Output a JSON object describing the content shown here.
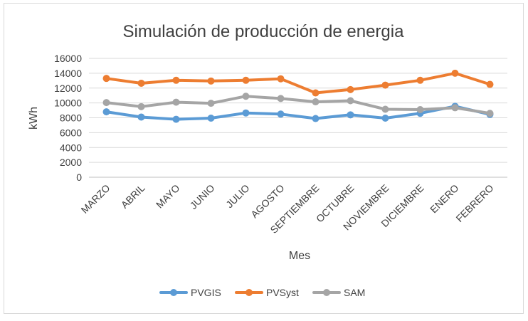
{
  "chart_data": {
    "type": "line",
    "title": "Simulación de producción de energia",
    "xlabel": "Mes",
    "ylabel": "kWh",
    "ylim": [
      0,
      16000
    ],
    "yticks": [
      0,
      2000,
      4000,
      6000,
      8000,
      10000,
      12000,
      14000,
      16000
    ],
    "grid": true,
    "legend_position": "bottom",
    "categories": [
      "MARZO",
      "ABRIL",
      "MAYO",
      "JUNIO",
      "JULIO",
      "AGOSTO",
      "SEPTIEMBRE",
      "OCTUBRE",
      "NOVIEMBRE",
      "DICIEMBRE",
      "ENERO",
      "FEBRERO"
    ],
    "series": [
      {
        "name": "PVGIS",
        "color": "#5b9bd5",
        "values": [
          8800,
          8100,
          7800,
          7950,
          8650,
          8500,
          7900,
          8400,
          7950,
          8600,
          9550,
          8450
        ]
      },
      {
        "name": "PVSyst",
        "color": "#ed7d31",
        "values": [
          13300,
          12650,
          13050,
          12950,
          13050,
          13250,
          11350,
          11800,
          12400,
          13050,
          14000,
          12500
        ]
      },
      {
        "name": "SAM",
        "color": "#a5a5a5",
        "values": [
          10050,
          9500,
          10100,
          9950,
          10900,
          10600,
          10150,
          10300,
          9150,
          9100,
          9350,
          8600
        ]
      }
    ]
  }
}
